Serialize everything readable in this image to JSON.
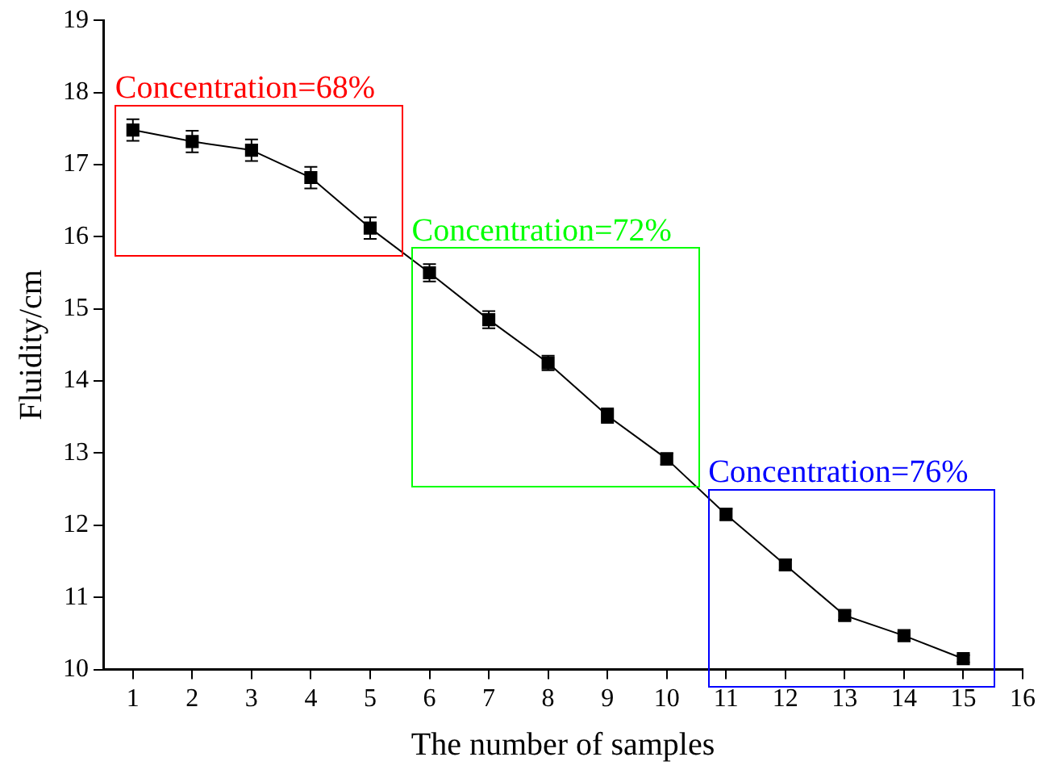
{
  "chart_data": {
    "type": "line",
    "xlabel": "The number of samples",
    "ylabel": "Fluidity/cm",
    "x": [
      1,
      2,
      3,
      4,
      5,
      6,
      7,
      8,
      9,
      10,
      11,
      12,
      13,
      14,
      15
    ],
    "series": [
      {
        "color": "#000000",
        "values": [
          17.48,
          17.32,
          17.2,
          16.82,
          16.12,
          15.5,
          14.85,
          14.25,
          13.52,
          12.92,
          12.15,
          11.45,
          10.75,
          10.47,
          10.15
        ],
        "errors": [
          0.15,
          0.15,
          0.15,
          0.15,
          0.15,
          0.12,
          0.12,
          0.1,
          0.1,
          0.08,
          0.08,
          0.07,
          0.06,
          0.05,
          0.05
        ]
      }
    ],
    "xlim": [
      0.5,
      16
    ],
    "xticks": [
      1,
      2,
      3,
      4,
      5,
      6,
      7,
      8,
      9,
      10,
      11,
      12,
      13,
      14,
      15,
      16
    ],
    "ylim": [
      10,
      19
    ],
    "yticks": [
      10,
      11,
      12,
      13,
      14,
      15,
      16,
      17,
      18,
      19
    ],
    "annotations": [
      "Concentration=68%",
      "Concentration=72%",
      "Concentration=76%"
    ],
    "marker": "square",
    "line_style": "solid",
    "grid": false,
    "legend": false
  }
}
